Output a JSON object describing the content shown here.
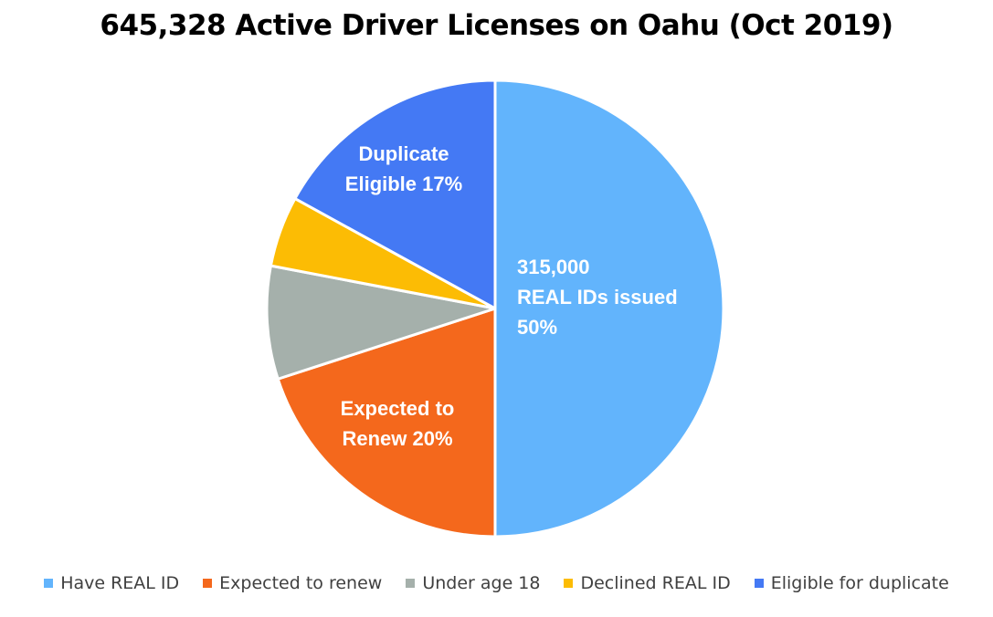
{
  "chart_data": {
    "type": "pie",
    "title": "645,328 Active Driver Licenses on Oahu (Oct 2019)",
    "legend_position": "bottom",
    "slices": [
      {
        "name": "Have REAL ID",
        "value": 50,
        "color": "#62B4FC",
        "label_lines": [
          "315,000",
          "REAL IDs issued",
          "50%"
        ]
      },
      {
        "name": "Expected to renew",
        "value": 20,
        "color": "#F4681C",
        "label_lines": [
          "Expected to",
          "Renew 20%"
        ]
      },
      {
        "name": "Under age 18",
        "value": 8,
        "color": "#A5B0AB",
        "label_lines": []
      },
      {
        "name": "Declined REAL ID",
        "value": 5,
        "color": "#FCBC04",
        "label_lines": []
      },
      {
        "name": "Eligible for duplicate",
        "value": 17,
        "color": "#4479F4",
        "label_lines": [
          "Duplicate",
          "Eligible 17%"
        ]
      }
    ]
  }
}
